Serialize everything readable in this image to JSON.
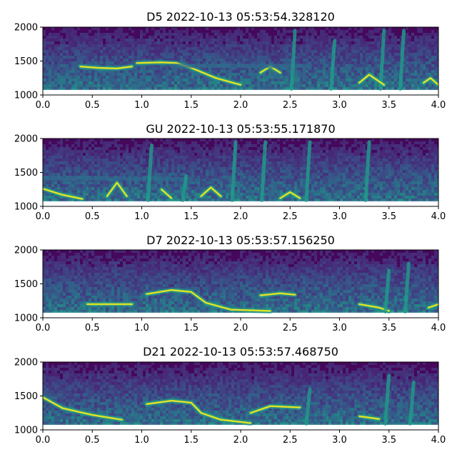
{
  "figure": {
    "background": "#ffffff"
  },
  "chart_data": [
    {
      "type": "heatmap",
      "title": "D5 2022-10-13 05:53:54.328120",
      "xlabel": "",
      "ylabel": "",
      "xlim": [
        0.0,
        4.0
      ],
      "ylim": [
        1000,
        2000
      ],
      "xticks": [
        "0.0",
        "0.5",
        "1.0",
        "1.5",
        "2.0",
        "2.5",
        "3.0",
        "3.5",
        "4.0"
      ],
      "yticks": [
        "1000",
        "1500",
        "2000"
      ],
      "colormap": "viridis",
      "data_ymin": 1090,
      "features": [
        {
          "kind": "whistle",
          "points": [
            [
              0.38,
              1420
            ],
            [
              0.55,
              1400
            ],
            [
              0.75,
              1390
            ],
            [
              0.9,
              1420
            ]
          ]
        },
        {
          "kind": "whistle",
          "points": [
            [
              0.95,
              1470
            ],
            [
              1.2,
              1480
            ],
            [
              1.35,
              1470
            ],
            [
              1.5,
              1400
            ],
            [
              1.75,
              1250
            ],
            [
              2.0,
              1150
            ]
          ]
        },
        {
          "kind": "whistle",
          "points": [
            [
              2.2,
              1330
            ],
            [
              2.3,
              1420
            ],
            [
              2.4,
              1330
            ]
          ]
        },
        {
          "kind": "band",
          "points": [
            [
              1.3,
              1430
            ],
            [
              2.7,
              1430
            ]
          ]
        },
        {
          "kind": "click",
          "x": 2.55,
          "top": 1950
        },
        {
          "kind": "click",
          "x": 2.95,
          "top": 1800
        },
        {
          "kind": "click",
          "x": 3.45,
          "top": 1950
        },
        {
          "kind": "click",
          "x": 3.65,
          "top": 1950
        },
        {
          "kind": "whistle",
          "points": [
            [
              3.2,
              1180
            ],
            [
              3.3,
              1300
            ],
            [
              3.45,
              1150
            ]
          ]
        },
        {
          "kind": "whistle",
          "points": [
            [
              3.85,
              1180
            ],
            [
              3.92,
              1250
            ],
            [
              4.0,
              1150
            ]
          ]
        }
      ]
    },
    {
      "type": "heatmap",
      "title": "GU 2022-10-13 05:53:55.171870",
      "xlabel": "",
      "ylabel": "",
      "xlim": [
        0.0,
        4.0
      ],
      "ylim": [
        1000,
        2000
      ],
      "xticks": [
        "0.0",
        "0.5",
        "1.0",
        "1.5",
        "2.0",
        "2.5",
        "3.0",
        "3.5",
        "4.0"
      ],
      "yticks": [
        "1000",
        "1500",
        "2000"
      ],
      "colormap": "viridis",
      "data_ymin": 1090,
      "features": [
        {
          "kind": "whistle",
          "points": [
            [
              0.0,
              1260
            ],
            [
              0.2,
              1170
            ],
            [
              0.4,
              1110
            ]
          ]
        },
        {
          "kind": "band",
          "points": [
            [
              0.0,
              1420
            ],
            [
              1.5,
              1400
            ]
          ]
        },
        {
          "kind": "whistle",
          "points": [
            [
              0.65,
              1150
            ],
            [
              0.75,
              1350
            ],
            [
              0.85,
              1150
            ]
          ]
        },
        {
          "kind": "whistle",
          "points": [
            [
              1.2,
              1250
            ],
            [
              1.3,
              1120
            ]
          ]
        },
        {
          "kind": "click",
          "x": 1.1,
          "top": 1900
        },
        {
          "kind": "click",
          "x": 1.45,
          "top": 1450
        },
        {
          "kind": "click",
          "x": 1.95,
          "top": 1950
        },
        {
          "kind": "click",
          "x": 2.25,
          "top": 1950
        },
        {
          "kind": "click",
          "x": 2.7,
          "top": 1950
        },
        {
          "kind": "click",
          "x": 3.3,
          "top": 1950
        },
        {
          "kind": "whistle",
          "points": [
            [
              1.6,
              1150
            ],
            [
              1.7,
              1280
            ],
            [
              1.8,
              1150
            ]
          ]
        },
        {
          "kind": "whistle",
          "points": [
            [
              2.4,
              1120
            ],
            [
              2.5,
              1210
            ],
            [
              2.6,
              1120
            ]
          ]
        }
      ]
    },
    {
      "type": "heatmap",
      "title": "D7 2022-10-13 05:53:57.156250",
      "xlabel": "",
      "ylabel": "",
      "xlim": [
        0.0,
        4.0
      ],
      "ylim": [
        1000,
        2000
      ],
      "xticks": [
        "0.0",
        "0.5",
        "1.0",
        "1.5",
        "2.0",
        "2.5",
        "3.0",
        "3.5",
        "4.0"
      ],
      "yticks": [
        "1000",
        "1500",
        "2000"
      ],
      "colormap": "viridis",
      "data_ymin": 1090,
      "features": [
        {
          "kind": "whistle",
          "points": [
            [
              0.45,
              1200
            ],
            [
              0.7,
              1200
            ],
            [
              0.9,
              1200
            ]
          ]
        },
        {
          "kind": "whistle",
          "points": [
            [
              1.05,
              1350
            ],
            [
              1.3,
              1410
            ],
            [
              1.5,
              1380
            ],
            [
              1.65,
              1220
            ],
            [
              1.9,
              1120
            ],
            [
              2.3,
              1100
            ]
          ]
        },
        {
          "kind": "whistle",
          "points": [
            [
              2.2,
              1330
            ],
            [
              2.4,
              1360
            ],
            [
              2.55,
              1340
            ]
          ]
        },
        {
          "kind": "whistle",
          "points": [
            [
              3.2,
              1200
            ],
            [
              3.4,
              1150
            ],
            [
              3.5,
              1100
            ]
          ]
        },
        {
          "kind": "whistle",
          "points": [
            [
              3.9,
              1150
            ],
            [
              4.0,
              1200
            ]
          ]
        },
        {
          "kind": "click",
          "x": 3.5,
          "top": 1700
        },
        {
          "kind": "click",
          "x": 3.7,
          "top": 1800
        }
      ]
    },
    {
      "type": "heatmap",
      "title": "D21 2022-10-13 05:53:57.468750",
      "xlabel": "",
      "ylabel": "",
      "xlim": [
        0.0,
        4.0
      ],
      "ylim": [
        1000,
        2000
      ],
      "xticks": [
        "0.0",
        "0.5",
        "1.0",
        "1.5",
        "2.0",
        "2.5",
        "3.0",
        "3.5",
        "4.0"
      ],
      "yticks": [
        "1000",
        "1500",
        "2000"
      ],
      "colormap": "viridis",
      "data_ymin": 1090,
      "features": [
        {
          "kind": "whistle",
          "points": [
            [
              0.0,
              1480
            ],
            [
              0.2,
              1320
            ],
            [
              0.5,
              1220
            ],
            [
              0.8,
              1150
            ]
          ]
        },
        {
          "kind": "whistle",
          "points": [
            [
              1.05,
              1380
            ],
            [
              1.3,
              1430
            ],
            [
              1.5,
              1400
            ],
            [
              1.6,
              1250
            ],
            [
              1.8,
              1150
            ],
            [
              2.1,
              1100
            ]
          ]
        },
        {
          "kind": "whistle",
          "points": [
            [
              2.1,
              1250
            ],
            [
              2.3,
              1350
            ],
            [
              2.6,
              1330
            ]
          ]
        },
        {
          "kind": "whistle",
          "points": [
            [
              3.2,
              1200
            ],
            [
              3.4,
              1160
            ]
          ]
        },
        {
          "kind": "click",
          "x": 3.5,
          "top": 1800
        },
        {
          "kind": "click",
          "x": 3.75,
          "top": 1700
        },
        {
          "kind": "click",
          "x": 2.7,
          "top": 1600
        }
      ]
    }
  ]
}
